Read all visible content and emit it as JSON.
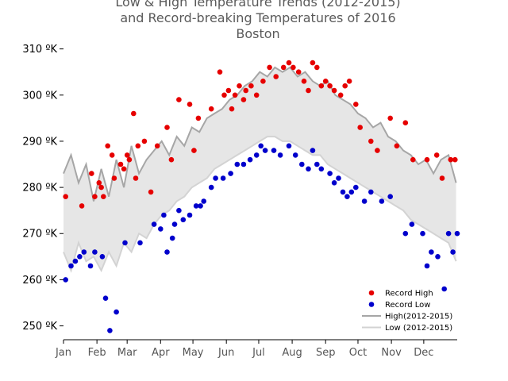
{
  "chart_data": {
    "type": "line",
    "title": [
      "Low & High Temperature Trends (2012-2015)",
      "and Record-breaking Temperatures of 2016",
      "Boston"
    ],
    "xlabel": "",
    "ylabel": "",
    "ylim": [
      247,
      312
    ],
    "xlim": [
      1,
      366
    ],
    "yticks": [
      {
        "value": 250,
        "label": "250 ºK"
      },
      {
        "value": 260,
        "label": "260 ºK"
      },
      {
        "value": 270,
        "label": "270 ºK"
      },
      {
        "value": 280,
        "label": "280 ºK"
      },
      {
        "value": 290,
        "label": "290 ºK"
      },
      {
        "value": 300,
        "label": "300 ºK"
      },
      {
        "value": 310,
        "label": "310 ºK"
      }
    ],
    "xticks": [
      {
        "value": 1,
        "label": "Jan"
      },
      {
        "value": 32,
        "label": "Feb"
      },
      {
        "value": 60,
        "label": "Mar"
      },
      {
        "value": 91,
        "label": "Apr"
      },
      {
        "value": 121,
        "label": "May"
      },
      {
        "value": 152,
        "label": "Jun"
      },
      {
        "value": 182,
        "label": "Jul"
      },
      {
        "value": 213,
        "label": "Aug"
      },
      {
        "value": 244,
        "label": "Sep"
      },
      {
        "value": 274,
        "label": "Oct"
      },
      {
        "value": 305,
        "label": "Nov"
      },
      {
        "value": 335,
        "label": "Dec"
      }
    ],
    "legend_position": "lower-right",
    "legend": [
      {
        "label": "Record High",
        "kind": "marker",
        "color": "#e60000"
      },
      {
        "label": "Record Low",
        "kind": "marker",
        "color": "#0000cc"
      },
      {
        "label": "High(2012-2015)",
        "kind": "line",
        "color": "#a6a6a6"
      },
      {
        "label": "Low (2012-2015)",
        "kind": "line",
        "color": "#d3d3d3"
      }
    ],
    "fill_color": "#e6e6e6",
    "series": [
      {
        "name": "High(2012-2015)",
        "color": "#a6a6a6",
        "x": [
          1,
          8,
          15,
          22,
          29,
          36,
          43,
          50,
          57,
          64,
          71,
          78,
          85,
          92,
          99,
          106,
          113,
          120,
          127,
          134,
          141,
          148,
          155,
          162,
          169,
          176,
          183,
          190,
          197,
          204,
          211,
          218,
          225,
          232,
          239,
          246,
          253,
          260,
          267,
          274,
          281,
          288,
          295,
          302,
          309,
          316,
          323,
          330,
          337,
          344,
          351,
          358,
          365
        ],
        "values": [
          283,
          287,
          281,
          285,
          277,
          284,
          278,
          286,
          280,
          289,
          283,
          286,
          288,
          290,
          287,
          291,
          289,
          293,
          292,
          295,
          296,
          297,
          299,
          300,
          302,
          303,
          305,
          304,
          306,
          305,
          306,
          304,
          305,
          303,
          302,
          303,
          300,
          299,
          298,
          296,
          295,
          293,
          294,
          291,
          290,
          288,
          287,
          285,
          286,
          283,
          286,
          287,
          281
        ]
      },
      {
        "name": "Low (2012-2015)",
        "color": "#d3d3d3",
        "x": [
          1,
          8,
          15,
          22,
          29,
          36,
          43,
          50,
          57,
          64,
          71,
          78,
          85,
          92,
          99,
          106,
          113,
          120,
          127,
          134,
          141,
          148,
          155,
          162,
          169,
          176,
          183,
          190,
          197,
          204,
          211,
          218,
          225,
          232,
          239,
          246,
          253,
          260,
          267,
          274,
          281,
          288,
          295,
          302,
          309,
          316,
          323,
          330,
          337,
          344,
          351,
          358,
          365
        ],
        "values": [
          266,
          262,
          268,
          264,
          265,
          262,
          266,
          263,
          268,
          266,
          270,
          269,
          272,
          274,
          275,
          277,
          278,
          280,
          281,
          282,
          284,
          285,
          286,
          287,
          288,
          289,
          290,
          291,
          291,
          290,
          290,
          289,
          288,
          287,
          287,
          285,
          284,
          283,
          282,
          281,
          280,
          279,
          278,
          277,
          276,
          275,
          273,
          272,
          271,
          270,
          269,
          268,
          264
        ]
      },
      {
        "name": "Record High",
        "color": "#e60000",
        "x": [
          3,
          18,
          27,
          30,
          34,
          36,
          38,
          42,
          46,
          48,
          54,
          57,
          60,
          62,
          66,
          68,
          70,
          76,
          82,
          88,
          97,
          101,
          108,
          118,
          122,
          126,
          138,
          146,
          150,
          154,
          157,
          160,
          164,
          168,
          170,
          175,
          180,
          186,
          192,
          198,
          205,
          210,
          214,
          219,
          224,
          228,
          232,
          236,
          240,
          244,
          248,
          252,
          258,
          262,
          266,
          272,
          276,
          286,
          292,
          304,
          310,
          318,
          325,
          338,
          347,
          352,
          360,
          364
        ],
        "values": [
          278,
          276,
          283,
          278,
          281,
          280,
          278,
          289,
          287,
          282,
          285,
          284,
          287,
          286,
          296,
          282,
          289,
          290,
          279,
          289,
          293,
          286,
          299,
          298,
          288,
          295,
          297,
          305,
          300,
          301,
          297,
          300,
          302,
          299,
          301,
          302,
          300,
          303,
          306,
          304,
          306,
          307,
          306,
          305,
          303,
          301,
          307,
          306,
          302,
          303,
          302,
          301,
          300,
          302,
          303,
          298,
          293,
          290,
          288,
          295,
          289,
          294,
          286,
          286,
          287,
          282,
          286,
          286
        ],
        "marker": "circle"
      },
      {
        "name": "Record Low",
        "color": "#0000cc",
        "x": [
          3,
          8,
          12,
          16,
          20,
          26,
          30,
          37,
          40,
          44,
          50,
          58,
          72,
          85,
          91,
          94,
          97,
          102,
          104,
          108,
          112,
          118,
          124,
          128,
          131,
          138,
          142,
          149,
          156,
          162,
          168,
          174,
          180,
          184,
          188,
          196,
          202,
          210,
          216,
          222,
          228,
          232,
          236,
          240,
          248,
          252,
          256,
          260,
          264,
          268,
          272,
          280,
          286,
          296,
          304,
          318,
          324,
          334,
          338,
          342,
          348,
          354,
          358,
          362,
          366
        ],
        "values": [
          260,
          263,
          264,
          265,
          266,
          263,
          266,
          265,
          256,
          249,
          253,
          268,
          268,
          272,
          271,
          274,
          266,
          269,
          272,
          275,
          273,
          274,
          276,
          276,
          277,
          280,
          282,
          282,
          283,
          285,
          285,
          286,
          287,
          289,
          288,
          288,
          287,
          289,
          287,
          285,
          284,
          288,
          285,
          284,
          283,
          281,
          282,
          279,
          278,
          279,
          280,
          277,
          279,
          277,
          278,
          270,
          272,
          270,
          263,
          266,
          265,
          258,
          270,
          266,
          270
        ],
        "marker": "circle"
      }
    ]
  }
}
